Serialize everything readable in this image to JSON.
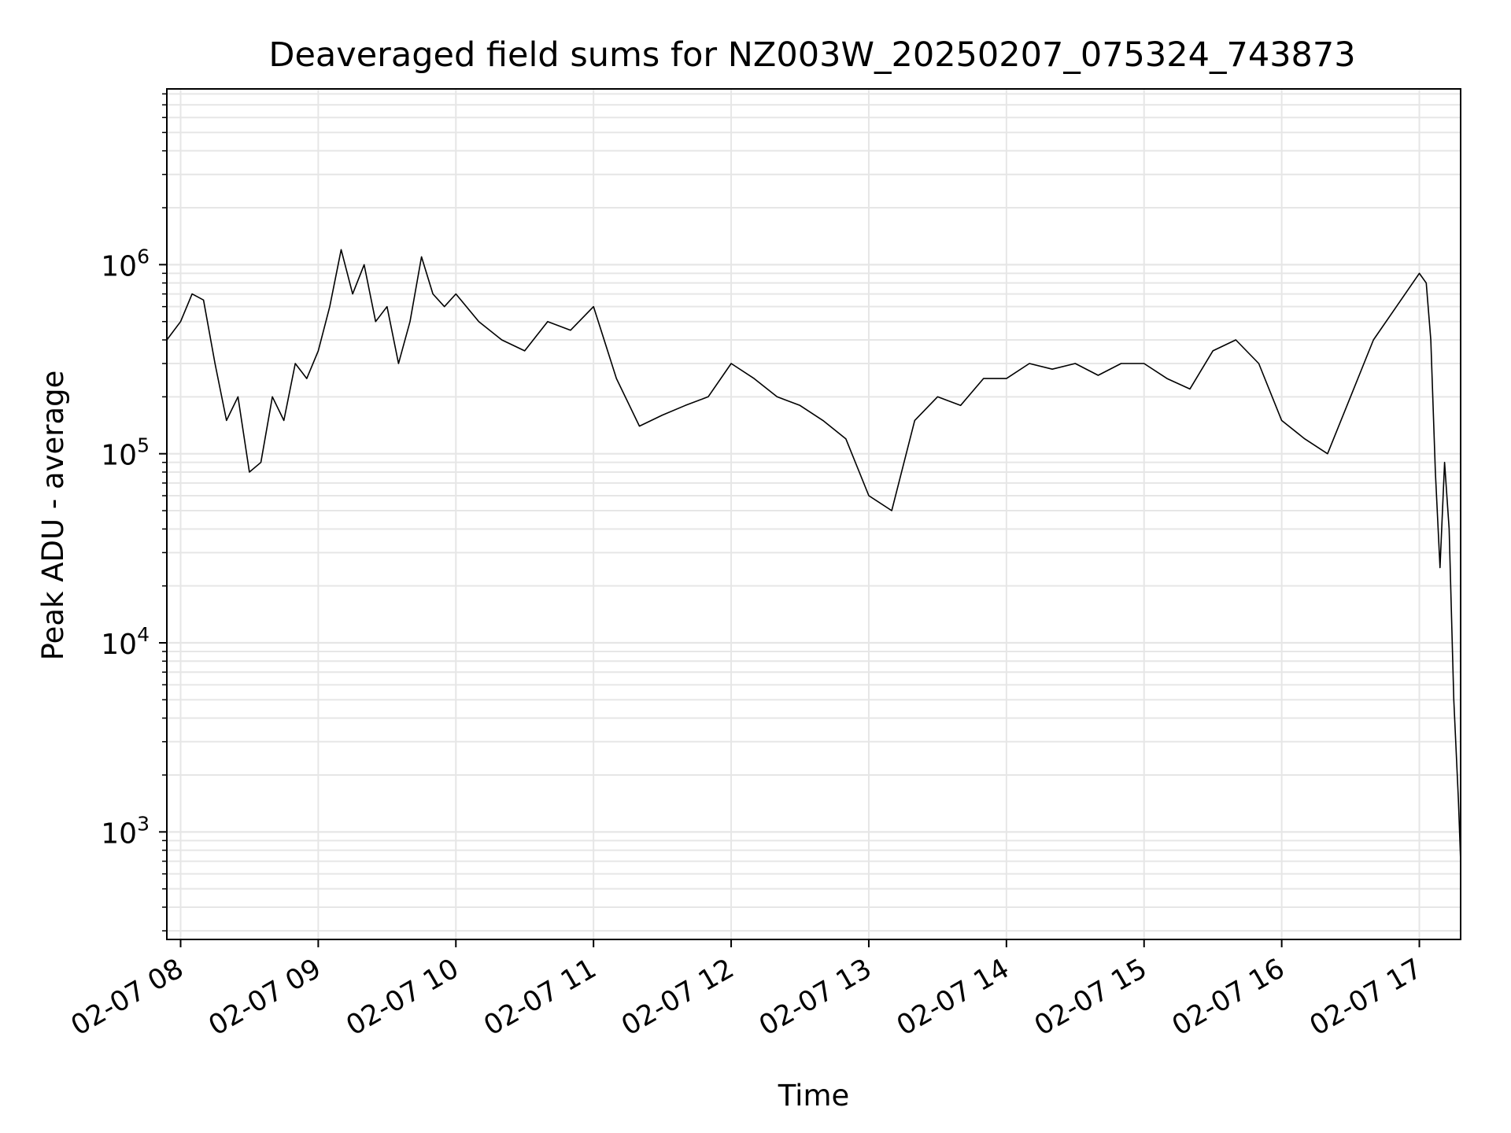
{
  "chart_data": {
    "type": "line",
    "title": "Deaveraged field sums for NZ003W_20250207_075324_743873",
    "xlabel": "Time",
    "ylabel": "Peak ADU - average",
    "yscale": "log",
    "grid": true,
    "xlim": [
      "2025-02-07 07:54",
      "2025-02-07 17:18"
    ],
    "ylim": [
      270,
      8500000
    ],
    "x_ticks": [
      {
        "t": "2025-02-07 08:00",
        "label": "02-07 08"
      },
      {
        "t": "2025-02-07 09:00",
        "label": "02-07 09"
      },
      {
        "t": "2025-02-07 10:00",
        "label": "02-07 10"
      },
      {
        "t": "2025-02-07 11:00",
        "label": "02-07 11"
      },
      {
        "t": "2025-02-07 12:00",
        "label": "02-07 12"
      },
      {
        "t": "2025-02-07 13:00",
        "label": "02-07 13"
      },
      {
        "t": "2025-02-07 14:00",
        "label": "02-07 14"
      },
      {
        "t": "2025-02-07 15:00",
        "label": "02-07 15"
      },
      {
        "t": "2025-02-07 16:00",
        "label": "02-07 16"
      },
      {
        "t": "2025-02-07 17:00",
        "label": "02-07 17"
      }
    ],
    "y_ticks": [
      {
        "v": 1000,
        "base": "10",
        "exp": "3"
      },
      {
        "v": 10000,
        "base": "10",
        "exp": "4"
      },
      {
        "v": 100000,
        "base": "10",
        "exp": "5"
      },
      {
        "v": 1000000,
        "base": "10",
        "exp": "6"
      }
    ],
    "series": [
      {
        "color": "#000000",
        "x": [
          "2025-02-07 07:54",
          "2025-02-07 08:00",
          "2025-02-07 08:05",
          "2025-02-07 08:10",
          "2025-02-07 08:15",
          "2025-02-07 08:20",
          "2025-02-07 08:25",
          "2025-02-07 08:30",
          "2025-02-07 08:35",
          "2025-02-07 08:40",
          "2025-02-07 08:45",
          "2025-02-07 08:50",
          "2025-02-07 08:55",
          "2025-02-07 09:00",
          "2025-02-07 09:05",
          "2025-02-07 09:10",
          "2025-02-07 09:15",
          "2025-02-07 09:20",
          "2025-02-07 09:25",
          "2025-02-07 09:30",
          "2025-02-07 09:35",
          "2025-02-07 09:40",
          "2025-02-07 09:45",
          "2025-02-07 09:50",
          "2025-02-07 09:55",
          "2025-02-07 10:00",
          "2025-02-07 10:10",
          "2025-02-07 10:20",
          "2025-02-07 10:30",
          "2025-02-07 10:40",
          "2025-02-07 10:50",
          "2025-02-07 11:00",
          "2025-02-07 11:10",
          "2025-02-07 11:20",
          "2025-02-07 11:30",
          "2025-02-07 11:40",
          "2025-02-07 11:50",
          "2025-02-07 12:00",
          "2025-02-07 12:10",
          "2025-02-07 12:20",
          "2025-02-07 12:30",
          "2025-02-07 12:40",
          "2025-02-07 12:50",
          "2025-02-07 13:00",
          "2025-02-07 13:10",
          "2025-02-07 13:20",
          "2025-02-07 13:30",
          "2025-02-07 13:40",
          "2025-02-07 13:50",
          "2025-02-07 14:00",
          "2025-02-07 14:10",
          "2025-02-07 14:20",
          "2025-02-07 14:30",
          "2025-02-07 14:40",
          "2025-02-07 14:50",
          "2025-02-07 15:00",
          "2025-02-07 15:10",
          "2025-02-07 15:20",
          "2025-02-07 15:30",
          "2025-02-07 15:40",
          "2025-02-07 15:50",
          "2025-02-07 16:00",
          "2025-02-07 16:10",
          "2025-02-07 16:20",
          "2025-02-07 16:30",
          "2025-02-07 16:40",
          "2025-02-07 16:50",
          "2025-02-07 17:00",
          "2025-02-07 17:03",
          "2025-02-07 17:05",
          "2025-02-07 17:07",
          "2025-02-07 17:09",
          "2025-02-07 17:11",
          "2025-02-07 17:13",
          "2025-02-07 17:15",
          "2025-02-07 17:17",
          "2025-02-07 17:18"
        ],
        "y": [
          400000,
          500000,
          700000,
          650000,
          300000,
          150000,
          200000,
          80000,
          90000,
          200000,
          150000,
          300000,
          250000,
          350000,
          600000,
          1200000,
          700000,
          1000000,
          500000,
          600000,
          300000,
          500000,
          1100000,
          700000,
          600000,
          700000,
          500000,
          400000,
          350000,
          500000,
          450000,
          600000,
          250000,
          140000,
          160000,
          180000,
          200000,
          300000,
          250000,
          200000,
          180000,
          150000,
          120000,
          60000,
          50000,
          150000,
          200000,
          180000,
          250000,
          250000,
          300000,
          280000,
          300000,
          260000,
          300000,
          300000,
          250000,
          220000,
          350000,
          400000,
          300000,
          150000,
          120000,
          100000,
          200000,
          400000,
          600000,
          900000,
          800000,
          400000,
          80000,
          25000,
          90000,
          40000,
          5000,
          1500,
          700
        ]
      }
    ]
  }
}
